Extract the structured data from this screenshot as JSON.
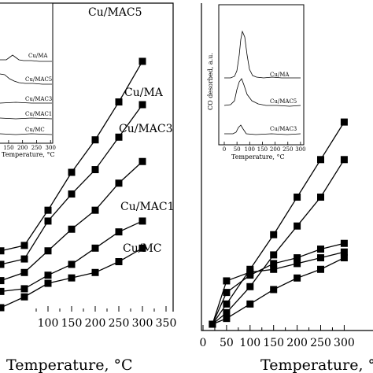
{
  "chart_data": [
    {
      "type": "line",
      "xlabel": "Temperature, °C",
      "xlim": [
        -10,
        395
      ],
      "ylim": [
        -0.3,
        9.5
      ],
      "x_ticks": [
        100,
        150,
        200,
        250,
        300,
        350
      ],
      "grid": false,
      "series": [
        {
          "name": "Cu/MAC5",
          "x": [
            0,
            50,
            100,
            150,
            200,
            250,
            300
          ],
          "y": [
            2.1,
            2.3,
            3.6,
            5.0,
            6.2,
            7.6,
            9.1
          ]
        },
        {
          "name": "Cu/MA",
          "x": [
            0,
            50,
            100,
            150,
            200,
            250,
            300
          ],
          "y": [
            1.6,
            1.8,
            3.2,
            4.2,
            5.1,
            6.3,
            7.5
          ]
        },
        {
          "name": "Cu/MAC3",
          "x": [
            0,
            50,
            100,
            150,
            200,
            250,
            300
          ],
          "y": [
            1.0,
            1.3,
            2.1,
            2.9,
            3.6,
            4.6,
            5.4
          ]
        },
        {
          "name": "Cu/MAC1",
          "x": [
            0,
            50,
            100,
            150,
            200,
            250,
            300
          ],
          "y": [
            0.6,
            0.7,
            1.2,
            1.6,
            2.2,
            2.8,
            3.2
          ]
        },
        {
          "name": "Cu/MC",
          "x": [
            0,
            50,
            100,
            150,
            200,
            250,
            300
          ],
          "y": [
            0.0,
            0.4,
            0.9,
            1.1,
            1.3,
            1.7,
            2.2
          ]
        }
      ],
      "inset": {
        "xlabel": "Temperature, °C",
        "x_ticks": [
          150,
          200,
          250,
          300
        ],
        "labels": [
          "Cu/MA",
          "Cu/MAC5",
          "Cu/MAC3",
          "Cu/MAC1",
          "Cu/MC"
        ]
      }
    },
    {
      "type": "line",
      "xlabel": "Temperature, °C",
      "xlim": [
        0,
        310
      ],
      "ylim": [
        -0.2,
        9.6
      ],
      "x_ticks": [
        0,
        50,
        100,
        150,
        200,
        250,
        300
      ],
      "grid": false,
      "series": [
        {
          "x": [
            20,
            50,
            100,
            150,
            200,
            250,
            300
          ],
          "y": [
            0.0,
            0.7,
            1.9,
            3.1,
            4.4,
            5.7,
            7.0
          ]
        },
        {
          "x": [
            20,
            50,
            100,
            150,
            200,
            250,
            300
          ],
          "y": [
            0.0,
            0.4,
            1.3,
            2.4,
            3.4,
            4.4,
            5.7
          ]
        },
        {
          "x": [
            20,
            50,
            100,
            150,
            200,
            250,
            300
          ],
          "y": [
            0.0,
            1.5,
            1.8,
            1.9,
            2.1,
            2.3,
            2.5
          ]
        },
        {
          "x": [
            20,
            50,
            100,
            150,
            200,
            250,
            300
          ],
          "y": [
            0.0,
            1.1,
            1.7,
            2.1,
            2.3,
            2.6,
            2.8
          ]
        },
        {
          "x": [
            20,
            50,
            100,
            150,
            200,
            250,
            300
          ],
          "y": [
            0.0,
            0.2,
            0.7,
            1.2,
            1.6,
            1.9,
            2.3
          ]
        }
      ],
      "inset": {
        "ylabel": "CO desorbed, a.u.",
        "xlabel": "Temperature, °C",
        "x_ticks": [
          0,
          50,
          100,
          150,
          200,
          250,
          300
        ],
        "labels": [
          "Cu/MA",
          "Cu/MAC5",
          "Cu/MAC3"
        ]
      }
    }
  ]
}
